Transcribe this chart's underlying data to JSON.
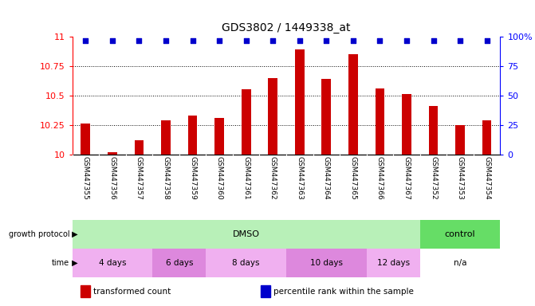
{
  "title": "GDS3802 / 1449338_at",
  "samples": [
    "GSM447355",
    "GSM447356",
    "GSM447357",
    "GSM447358",
    "GSM447359",
    "GSM447360",
    "GSM447361",
    "GSM447362",
    "GSM447363",
    "GSM447364",
    "GSM447365",
    "GSM447366",
    "GSM447367",
    "GSM447352",
    "GSM447353",
    "GSM447354"
  ],
  "bar_values": [
    10.26,
    10.02,
    10.12,
    10.29,
    10.33,
    10.31,
    10.55,
    10.65,
    10.89,
    10.64,
    10.85,
    10.56,
    10.51,
    10.41,
    10.25,
    10.29
  ],
  "percentile_values": [
    97,
    97,
    97,
    97,
    97,
    97,
    97,
    97,
    97,
    97,
    97,
    97,
    97,
    97,
    97,
    97
  ],
  "ylim_left": [
    10,
    11
  ],
  "ylim_right": [
    0,
    100
  ],
  "yticks_left": [
    10,
    10.25,
    10.5,
    10.75,
    11
  ],
  "ytick_labels_left": [
    "10",
    "10.25",
    "10.5",
    "10.75",
    "11"
  ],
  "yticks_right": [
    0,
    25,
    50,
    75,
    100
  ],
  "ytick_labels_right": [
    "0",
    "25",
    "50",
    "75",
    "100%"
  ],
  "bar_color": "#cc0000",
  "dot_color": "#0000cc",
  "bg_color": "#ffffff",
  "sample_bg_color": "#d8d8d8",
  "protocol_dmso_color": "#b8f0b8",
  "protocol_control_color": "#66dd66",
  "time_color1": "#f0b0f0",
  "time_color2": "#dd88dd",
  "time_na_color": "#ffffff",
  "growth_protocol_label": "growth protocol",
  "time_label": "time",
  "hline_values": [
    10.25,
    10.5,
    10.75
  ],
  "protocol_groups": [
    {
      "label": "DMSO",
      "start": 0,
      "end": 13
    },
    {
      "label": "control",
      "start": 13,
      "end": 16
    }
  ],
  "time_groups": [
    {
      "label": "4 days",
      "start": 0,
      "end": 3,
      "shade": 0
    },
    {
      "label": "6 days",
      "start": 3,
      "end": 5,
      "shade": 1
    },
    {
      "label": "8 days",
      "start": 5,
      "end": 8,
      "shade": 0
    },
    {
      "label": "10 days",
      "start": 8,
      "end": 11,
      "shade": 1
    },
    {
      "label": "12 days",
      "start": 11,
      "end": 13,
      "shade": 0
    },
    {
      "label": "n/a",
      "start": 13,
      "end": 16,
      "shade": 2
    }
  ],
  "legend_items": [
    {
      "color": "#cc0000",
      "label": "transformed count"
    },
    {
      "color": "#0000cc",
      "label": "percentile rank within the sample"
    }
  ]
}
